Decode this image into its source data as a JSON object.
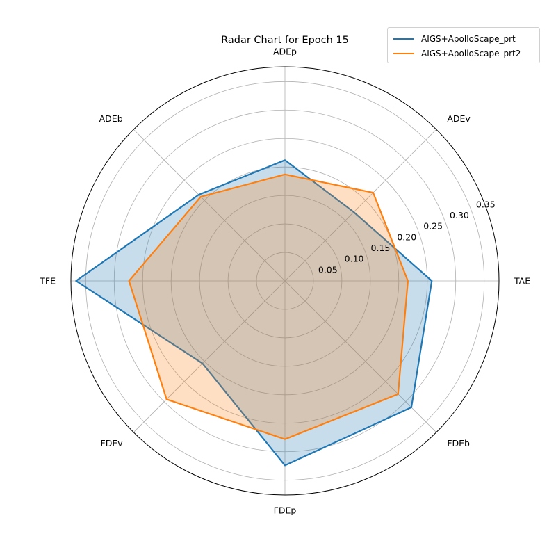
{
  "chart_data": {
    "type": "radar",
    "title": "Radar Chart for Epoch 15",
    "axes": [
      "ADEp",
      "ADEv",
      "TAE",
      "FDEb",
      "FDEp",
      "FDEv",
      "TFE",
      "ADEb"
    ],
    "r_ticks": [
      0.05,
      0.1,
      0.15,
      0.2,
      0.25,
      0.3,
      0.35
    ],
    "r_tick_labels": [
      "0.05",
      "0.10",
      "0.15",
      "0.20",
      "0.25",
      "0.30",
      "0.35"
    ],
    "rlim": [
      0,
      0.376
    ],
    "grid": true,
    "legend_position": "top-right",
    "series": [
      {
        "name": "AIGS+ApolloScape_prt",
        "color": "#1f77b4",
        "values": [
          0.212,
          0.171,
          0.258,
          0.314,
          0.324,
          0.205,
          0.367,
          0.214
        ]
      },
      {
        "name": "AIGS+ApolloScape_prt2",
        "color": "#ff7f0e",
        "values": [
          0.187,
          0.219,
          0.216,
          0.281,
          0.278,
          0.294,
          0.274,
          0.209
        ]
      }
    ]
  }
}
